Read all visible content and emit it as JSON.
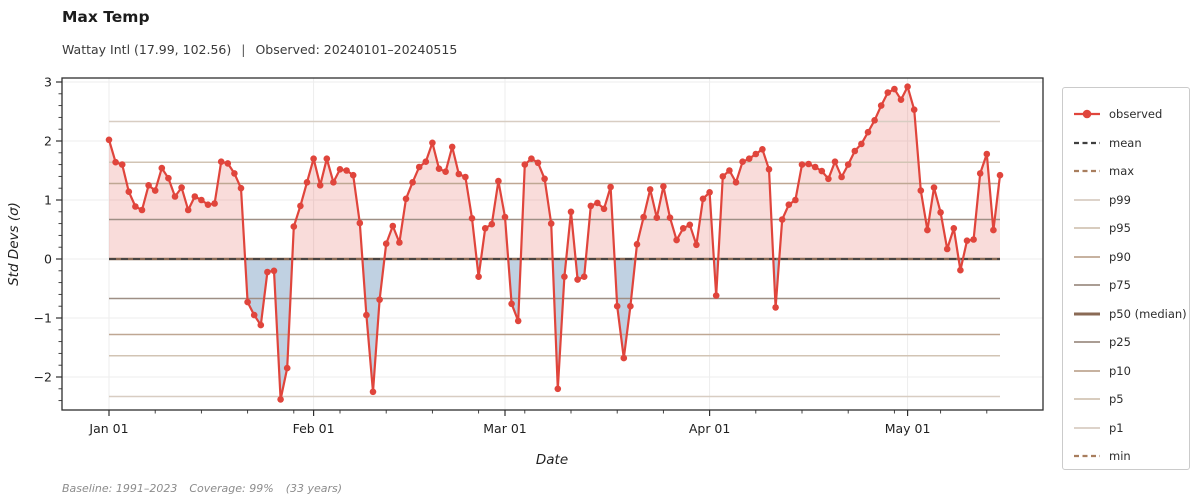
{
  "header": {
    "title": "Max Temp",
    "subtitle_station": "Wattay Intl (17.99, 102.56)",
    "subtitle_separator": "|",
    "subtitle_observed": "Observed: 20240101–20240515"
  },
  "footer": {
    "baseline": "Baseline: 1991–2023",
    "coverage": "Coverage: 99%",
    "years": "(33 years)"
  },
  "chart_data": {
    "type": "line",
    "title": "Max Temp",
    "xlabel": "Date",
    "ylabel": "Std Devs (σ)",
    "ylim": [
      -2.56,
      3.07
    ],
    "x_range_days": 135,
    "grid": true,
    "legend_position": "right",
    "x_major_ticks": [
      {
        "label": "Jan 01",
        "day": 0
      },
      {
        "label": "Feb 01",
        "day": 31
      },
      {
        "label": "Mar 01",
        "day": 60
      },
      {
        "label": "Apr 01",
        "day": 91
      },
      {
        "label": "May 01",
        "day": 121
      }
    ],
    "x_minor_tick_interval_days": 7,
    "y_major_ticks": [
      {
        "label": "3",
        "value": 3
      },
      {
        "label": "2",
        "value": 2
      },
      {
        "label": "1",
        "value": 1
      },
      {
        "label": "0",
        "value": 0
      },
      {
        "label": "−1",
        "value": -1
      },
      {
        "label": "−2",
        "value": -2
      }
    ],
    "y_minor_tick_step": 0.2,
    "observed": {
      "name": "observed",
      "color": "#e0453c",
      "marker": "circle",
      "start_date": "2024-01-01",
      "values": [
        2.02,
        1.64,
        1.6,
        1.14,
        0.89,
        0.83,
        1.25,
        1.16,
        1.54,
        1.37,
        1.06,
        1.21,
        0.83,
        1.06,
        1.0,
        0.92,
        0.94,
        1.65,
        1.62,
        1.45,
        1.2,
        -0.73,
        -0.95,
        -1.12,
        -0.22,
        -0.2,
        -2.38,
        -1.85,
        0.55,
        0.9,
        1.3,
        1.7,
        1.25,
        1.7,
        1.3,
        1.52,
        1.5,
        1.42,
        0.61,
        -0.95,
        -2.25,
        -0.69,
        0.26,
        0.56,
        0.28,
        1.02,
        1.3,
        1.56,
        1.65,
        1.97,
        1.53,
        1.48,
        1.9,
        1.44,
        1.39,
        0.69,
        -0.3,
        0.52,
        0.59,
        1.32,
        0.71,
        -0.76,
        -1.05,
        1.6,
        1.7,
        1.63,
        1.36,
        0.6,
        -2.2,
        -0.3,
        0.8,
        -0.35,
        -0.3,
        0.9,
        0.95,
        0.85,
        1.22,
        -0.8,
        -1.68,
        -0.8,
        0.25,
        0.71,
        1.18,
        0.7,
        1.23,
        0.7,
        0.32,
        0.52,
        0.58,
        0.24,
        1.02,
        1.13,
        -0.62,
        1.4,
        1.5,
        1.3,
        1.65,
        1.7,
        1.78,
        1.86,
        1.52,
        -0.82,
        0.67,
        0.92,
        1.0,
        1.6,
        1.61,
        1.56,
        1.49,
        1.36,
        1.65,
        1.39,
        1.6,
        1.83,
        1.95,
        2.15,
        2.35,
        2.6,
        2.82,
        2.88,
        2.7,
        2.92,
        2.53,
        1.16,
        0.49,
        1.21,
        0.79,
        0.17,
        0.52,
        -0.19,
        0.31,
        0.33,
        1.45,
        1.78,
        0.49,
        1.42
      ]
    },
    "reference_lines": [
      {
        "name": "p99",
        "value": 2.33,
        "color": "#d8cdc2",
        "dash": false,
        "width": 1.5
      },
      {
        "name": "p95",
        "value": 1.64,
        "color": "#d2c4b4",
        "dash": false,
        "width": 1.5
      },
      {
        "name": "p90",
        "value": 1.28,
        "color": "#bfa793",
        "dash": false,
        "width": 1.5
      },
      {
        "name": "p75",
        "value": 0.67,
        "color": "#9e8f85",
        "dash": false,
        "width": 1.5
      },
      {
        "name": "p50 (median)",
        "value": 0.0,
        "color": "#8a6a55",
        "dash": false,
        "width": 2.6
      },
      {
        "name": "p25",
        "value": -0.67,
        "color": "#9e8f85",
        "dash": false,
        "width": 1.5
      },
      {
        "name": "p10",
        "value": -1.28,
        "color": "#bfa793",
        "dash": false,
        "width": 1.5
      },
      {
        "name": "p5",
        "value": -1.64,
        "color": "#d2c4b4",
        "dash": false,
        "width": 1.5
      },
      {
        "name": "p1",
        "value": -2.33,
        "color": "#d8cdc2",
        "dash": false,
        "width": 1.5
      },
      {
        "name": "mean",
        "value": 0.0,
        "color": "#3f3f3f",
        "dash": true,
        "width": 1.8
      }
    ],
    "fill_above_color": "rgba(224,69,60,0.19)",
    "fill_below_color": "rgba(90,135,180,0.38)"
  },
  "legend": {
    "items": [
      {
        "label": "observed",
        "type": "line-marker",
        "color": "#e0453c"
      },
      {
        "label": "mean",
        "type": "dashed",
        "color": "#3f3f3f"
      },
      {
        "label": "max",
        "type": "dashed",
        "color": "#a87e5e"
      },
      {
        "label": "p99",
        "type": "solid",
        "color": "#d8cdc2"
      },
      {
        "label": "p95",
        "type": "solid",
        "color": "#d2c4b4"
      },
      {
        "label": "p90",
        "type": "solid",
        "color": "#bfa793"
      },
      {
        "label": "p75",
        "type": "solid",
        "color": "#9e8f85"
      },
      {
        "label": "p50 (median)",
        "type": "solid-thick",
        "color": "#8a6a55"
      },
      {
        "label": "p25",
        "type": "solid",
        "color": "#9e8f85"
      },
      {
        "label": "p10",
        "type": "solid",
        "color": "#bfa793"
      },
      {
        "label": "p5",
        "type": "solid",
        "color": "#d2c4b4"
      },
      {
        "label": "p1",
        "type": "solid",
        "color": "#d8cdc2"
      },
      {
        "label": "min",
        "type": "dashed",
        "color": "#a87e5e"
      }
    ]
  }
}
